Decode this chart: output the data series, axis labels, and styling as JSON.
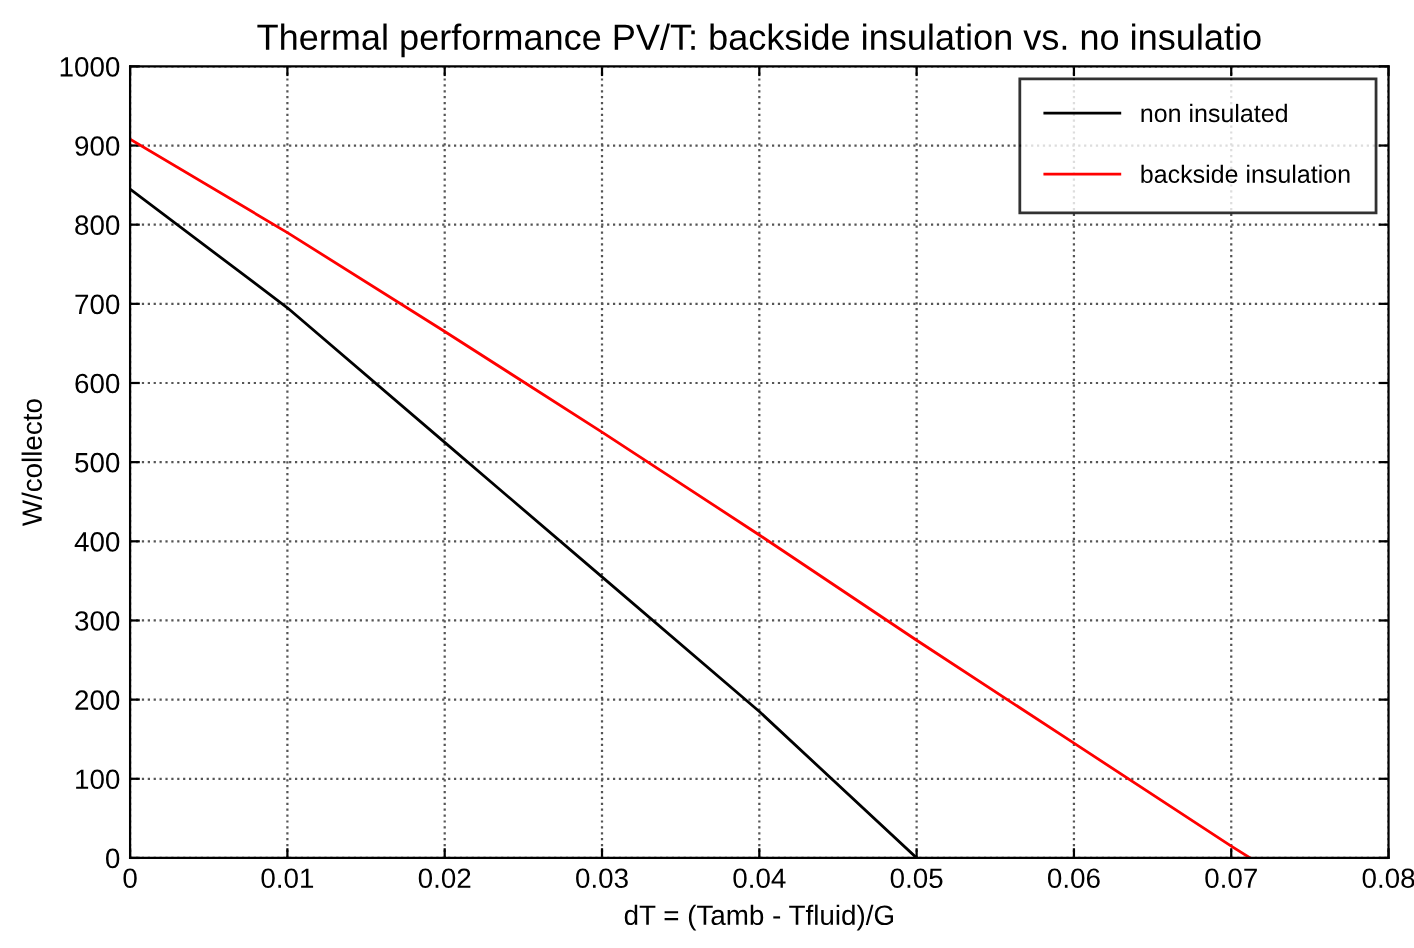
{
  "chart_data": {
    "type": "line",
    "title": "Thermal performance PV/T: backside insulation vs. no insulatio",
    "xlabel": "dT = (Tamb - Tfluid)/G",
    "ylabel": "W/collecto",
    "series": [
      {
        "name": "non insulated",
        "color": "#000000",
        "x": [
          0,
          0.01,
          0.02,
          0.03,
          0.04,
          0.05
        ],
        "values": [
          845,
          695,
          525,
          355,
          185,
          0
        ]
      },
      {
        "name": "backside insulation",
        "color": "#ff0000",
        "x": [
          0,
          0.01,
          0.02,
          0.03,
          0.04,
          0.05,
          0.06,
          0.07,
          0.0712
        ],
        "values": [
          908,
          790,
          665,
          538,
          408,
          275,
          145,
          15,
          0
        ]
      }
    ],
    "xlim": [
      0,
      0.08
    ],
    "xticks": [
      0,
      0.01,
      0.02,
      0.03,
      0.04,
      0.05,
      0.06,
      0.07,
      0.08
    ],
    "ylim": [
      0,
      1000
    ],
    "yticks": [
      0,
      100,
      200,
      300,
      400,
      500,
      600,
      700,
      800,
      900,
      1000
    ],
    "grid": true,
    "legend": "top right",
    "marker": "none",
    "line_style": "solid"
  }
}
